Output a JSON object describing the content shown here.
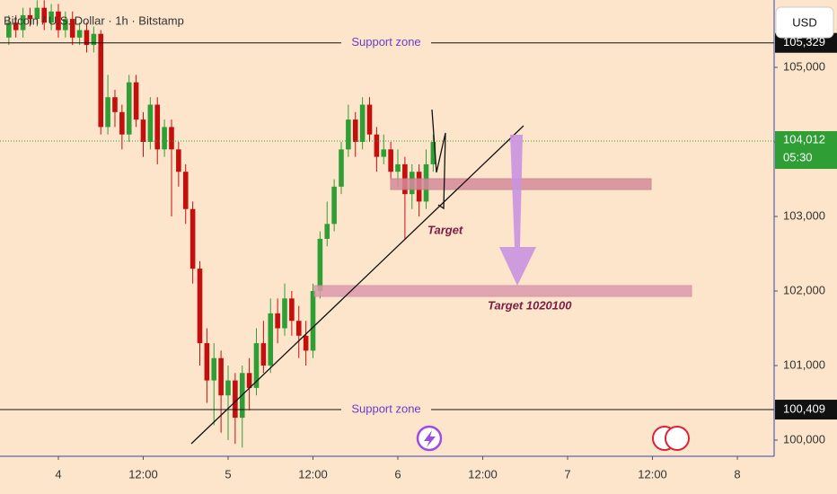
{
  "chart_data": {
    "type": "candlestick",
    "title": "Bitcoin / U.S. Dollar · 1h · Bitstamp",
    "currency": "USD",
    "up_color": "#2e9e35",
    "down_color": "#c40f0f",
    "x": [
      -7,
      -6,
      -5,
      -4,
      -3,
      -2,
      -1,
      0,
      1,
      2,
      3,
      4,
      5,
      6,
      7,
      8,
      9,
      10,
      11,
      12,
      13,
      14,
      15,
      16,
      17,
      18,
      19,
      20,
      21,
      22,
      23,
      24,
      25,
      26,
      27,
      28,
      29,
      30,
      31,
      32,
      33,
      34,
      35,
      36,
      37,
      38,
      39,
      40,
      41,
      42,
      43,
      44,
      45,
      46,
      47,
      48,
      49,
      50,
      51,
      52,
      53
    ],
    "open": [
      105400,
      105600,
      105500,
      105700,
      105650,
      105800,
      105600,
      105750,
      105500,
      105650,
      105400,
      105500,
      105300,
      105450,
      104200,
      104600,
      104400,
      104100,
      104800,
      104300,
      104000,
      104500,
      103900,
      104200,
      103900,
      103600,
      103100,
      102300,
      101300,
      100800,
      101100,
      100600,
      100800,
      100300,
      100900,
      100700,
      101300,
      101000,
      101700,
      101500,
      101900,
      101600,
      101400,
      101200,
      102000,
      102700,
      102900,
      103400,
      103900,
      104300,
      104000,
      104500,
      104100,
      103800,
      103900,
      103600,
      103700,
      103300,
      103600,
      103200,
      103700
    ],
    "high": [
      105700,
      105700,
      105800,
      105800,
      105900,
      105900,
      105850,
      105850,
      105750,
      105750,
      105600,
      105600,
      105550,
      105500,
      104900,
      104700,
      104500,
      104900,
      104900,
      104400,
      104600,
      104600,
      104300,
      104300,
      104000,
      103700,
      103200,
      102400,
      101500,
      101300,
      101200,
      101000,
      100900,
      101000,
      101100,
      101500,
      101600,
      101900,
      101900,
      102100,
      102000,
      101800,
      101600,
      102100,
      102800,
      103200,
      103500,
      104000,
      104500,
      104400,
      104600,
      104600,
      104200,
      104100,
      104000,
      103900,
      103800,
      103700,
      103700,
      103900,
      104100
    ],
    "low": [
      105300,
      105400,
      105400,
      105550,
      105550,
      105500,
      105500,
      105400,
      105400,
      105300,
      105300,
      105200,
      105200,
      104100,
      104100,
      104200,
      103900,
      104000,
      104200,
      103800,
      103900,
      103700,
      103800,
      103000,
      103400,
      102900,
      102100,
      101000,
      100500,
      100200,
      100100,
      100000,
      99950,
      99900,
      100400,
      100600,
      100900,
      100900,
      101300,
      101400,
      101400,
      101100,
      101000,
      101100,
      101900,
      102600,
      102800,
      103300,
      103800,
      103800,
      103900,
      104000,
      103600,
      103700,
      103500,
      103400,
      102700,
      103100,
      103000,
      103100,
      103600
    ],
    "close": [
      105600,
      105500,
      105700,
      105650,
      105800,
      105600,
      105750,
      105500,
      105650,
      105400,
      105500,
      105300,
      105450,
      104200,
      104600,
      104400,
      104100,
      104800,
      104300,
      104000,
      104500,
      103900,
      104200,
      103900,
      103600,
      103100,
      102300,
      101300,
      100800,
      101100,
      100600,
      100800,
      100300,
      100900,
      100700,
      101300,
      101000,
      101700,
      101500,
      101900,
      101600,
      101400,
      101200,
      102000,
      102700,
      102900,
      103400,
      103900,
      104300,
      104000,
      104500,
      104100,
      103800,
      103900,
      103600,
      103700,
      103300,
      103600,
      103200,
      103700,
      104000
    ],
    "xlim": [
      -8.25,
      101.2
    ],
    "xticks": [
      {
        "value": 0,
        "label": "4"
      },
      {
        "value": 12,
        "label": "12:00"
      },
      {
        "value": 24,
        "label": "5"
      },
      {
        "value": 36,
        "label": "12:00"
      },
      {
        "value": 48,
        "label": "6"
      },
      {
        "value": 60,
        "label": "12:00"
      },
      {
        "value": 72,
        "label": "7"
      },
      {
        "value": 84,
        "label": "12:00"
      },
      {
        "value": 96,
        "label": "8"
      }
    ],
    "ylim": [
      99783,
      105904
    ],
    "yticks": [
      {
        "value": 100000,
        "label": "100,000"
      },
      {
        "value": 101000,
        "label": "101,000"
      },
      {
        "value": 102000,
        "label": "102,000"
      },
      {
        "value": 103000,
        "label": "103,000"
      },
      {
        "value": 104000,
        "label": "104,000"
      },
      {
        "value": 105000,
        "label": "105,000"
      }
    ],
    "support_zones": [
      {
        "label": "Support zone",
        "value": 105329,
        "price_label": "105,329"
      },
      {
        "label": "Support zone",
        "value": 100409,
        "price_label": "100,409"
      }
    ],
    "last_price": {
      "value": 104012,
      "label": "104,012",
      "countdown": "05:30"
    },
    "annotations": [
      "Target",
      "Target 1020100"
    ]
  }
}
